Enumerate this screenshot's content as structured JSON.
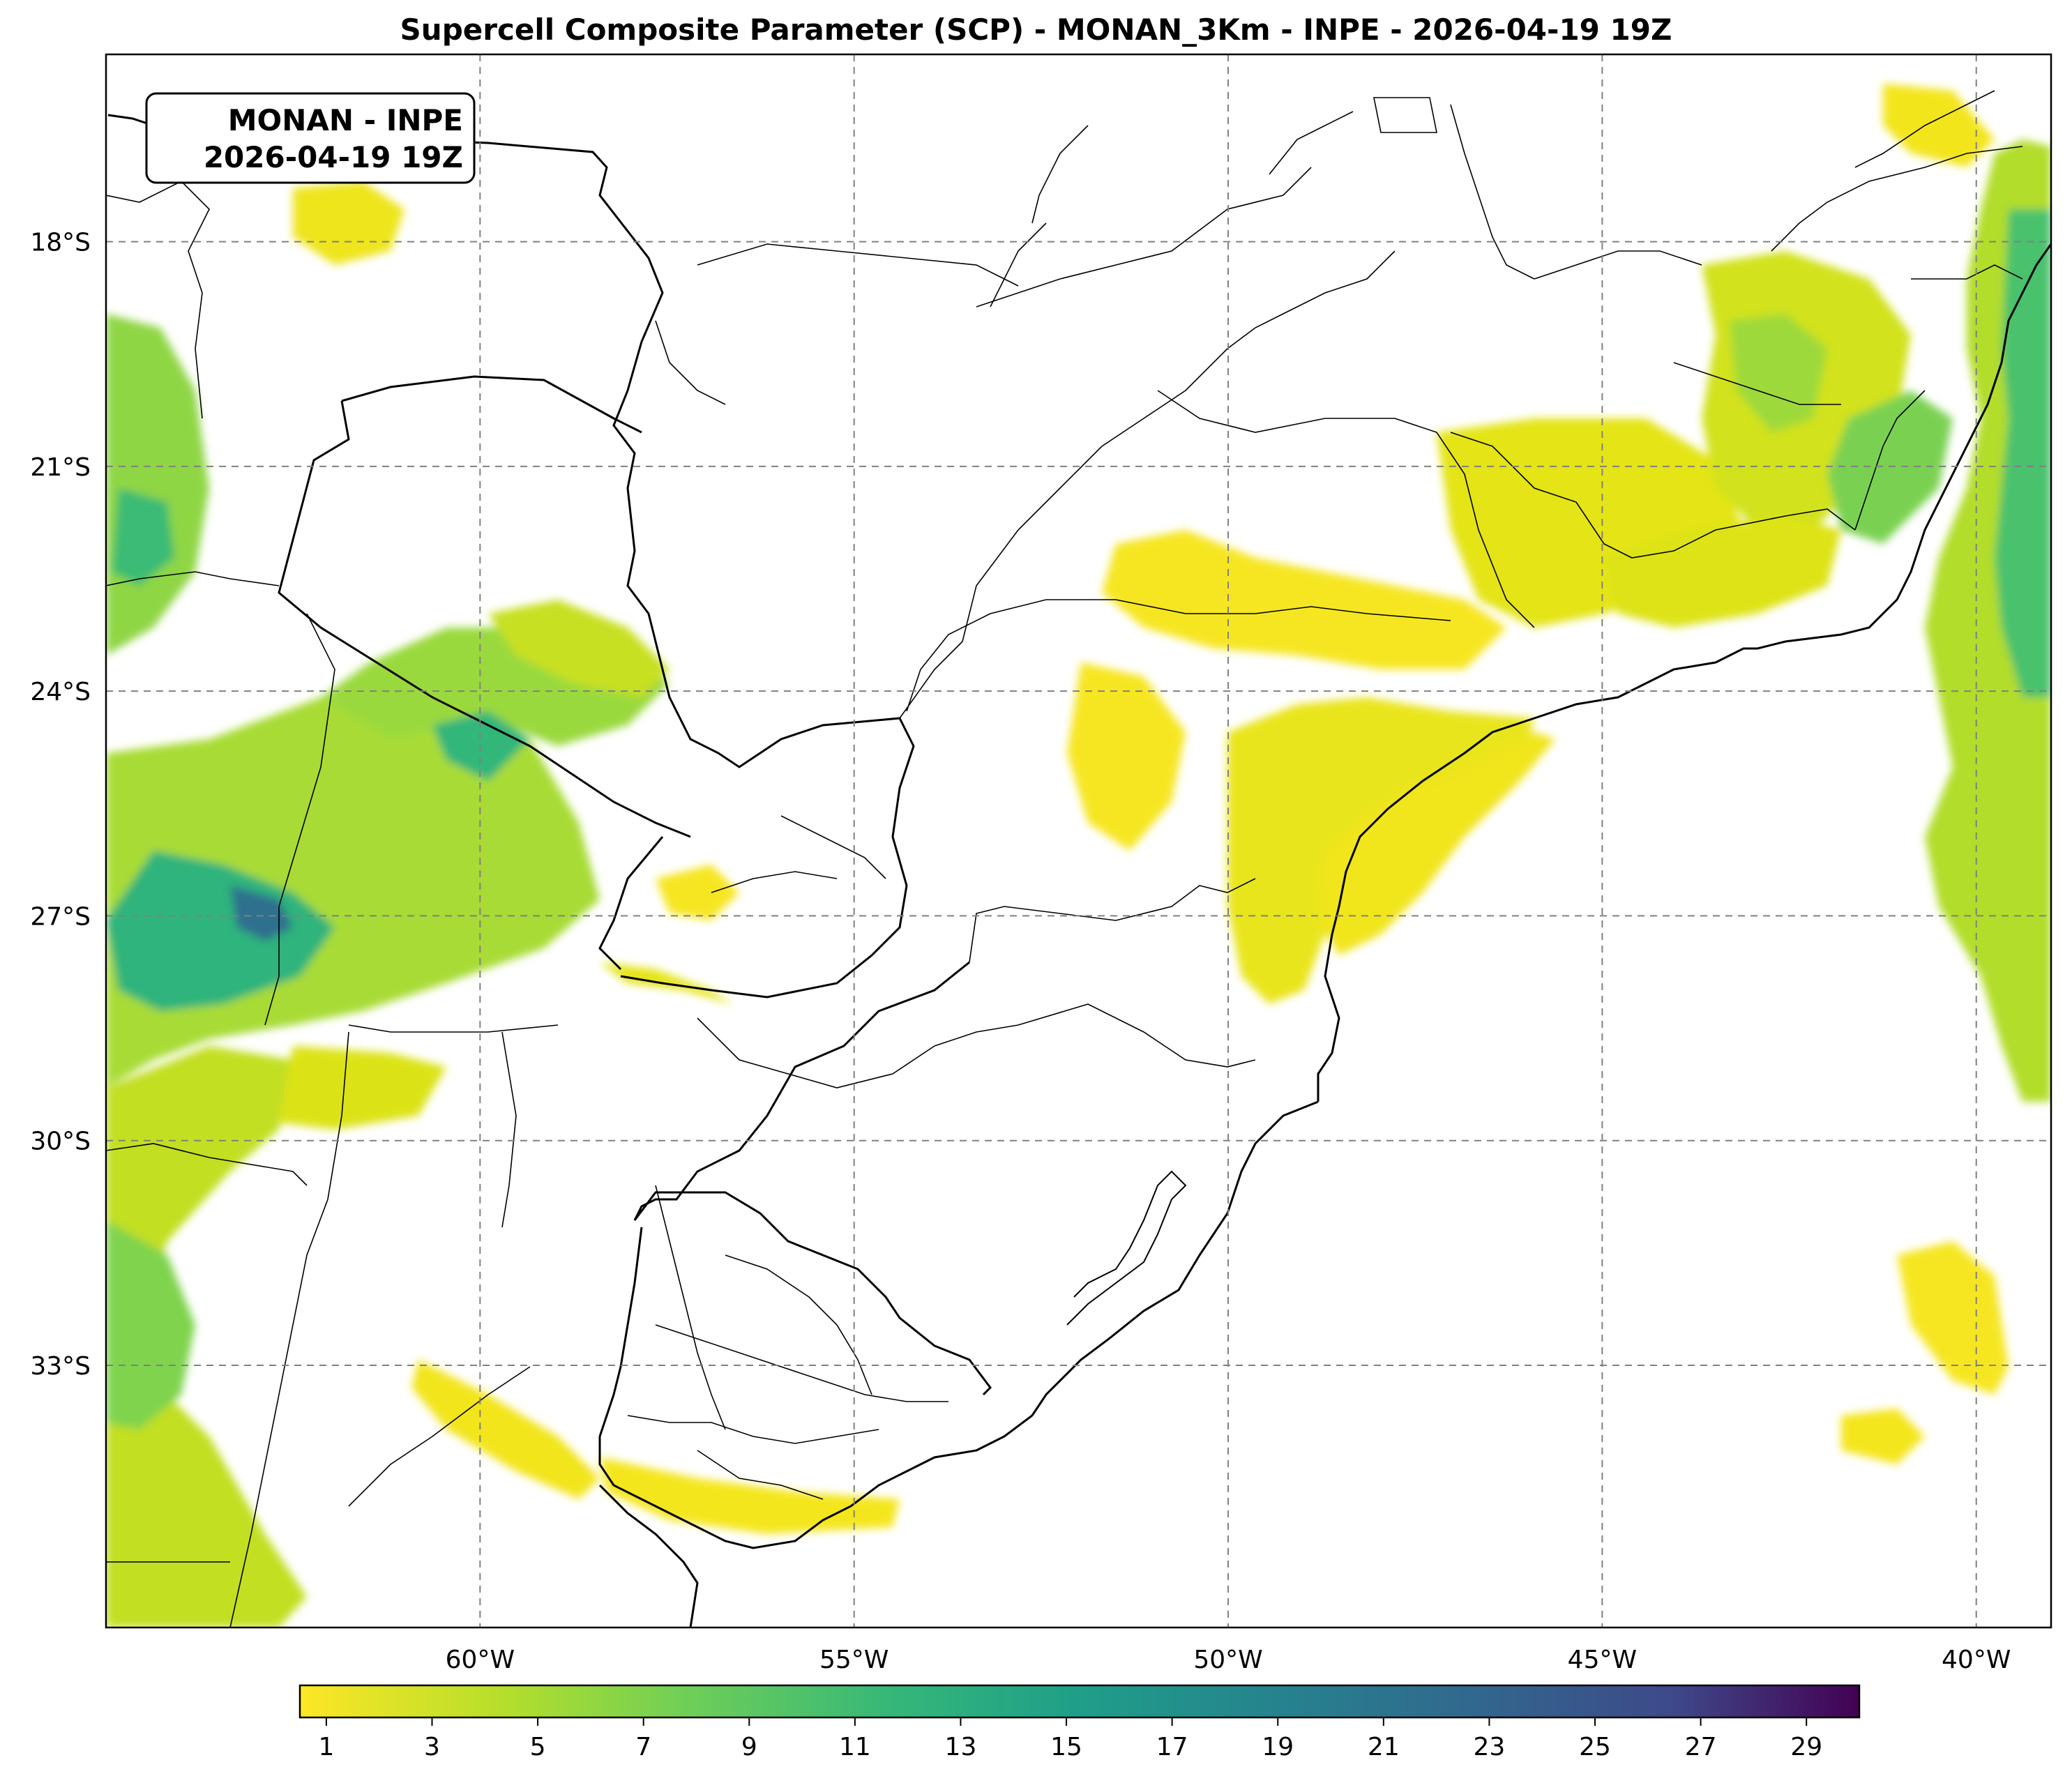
{
  "title": "Supercell Composite Parameter (SCP) - MONAN_3Km - INPE - 2026-04-19 19Z",
  "info_box": {
    "line1": "MONAN - INPE",
    "line2": "2026-04-19 19Z"
  },
  "map": {
    "lon_range": [
      -65,
      -39
    ],
    "lat_range": [
      -36.5,
      -15.5
    ],
    "lon_ticks": [
      -60,
      -55,
      -50,
      -45,
      -40
    ],
    "lon_tick_labels": [
      "60°W",
      "55°W",
      "50°W",
      "45°W",
      "40°W"
    ],
    "lat_ticks": [
      -18,
      -21,
      -24,
      -27,
      -30,
      -33
    ],
    "lat_tick_labels": [
      "18°S",
      "21°S",
      "24°S",
      "27°S",
      "30°S",
      "33°S"
    ],
    "gridlines": "dashed gray",
    "colormap": "viridis (reversed)",
    "colors": {
      "low": "#fde725",
      "mid": "#21918c",
      "high": "#440154",
      "border": "#000000",
      "grid": "#808080"
    }
  },
  "colorbar": {
    "range": [
      0.5,
      30
    ],
    "ticks": [
      1,
      3,
      5,
      7,
      9,
      11,
      13,
      15,
      17,
      19,
      21,
      23,
      25,
      27,
      29
    ],
    "tick_labels": [
      "1",
      "3",
      "5",
      "7",
      "9",
      "11",
      "13",
      "15",
      "17",
      "19",
      "21",
      "23",
      "25",
      "27",
      "29"
    ]
  }
}
